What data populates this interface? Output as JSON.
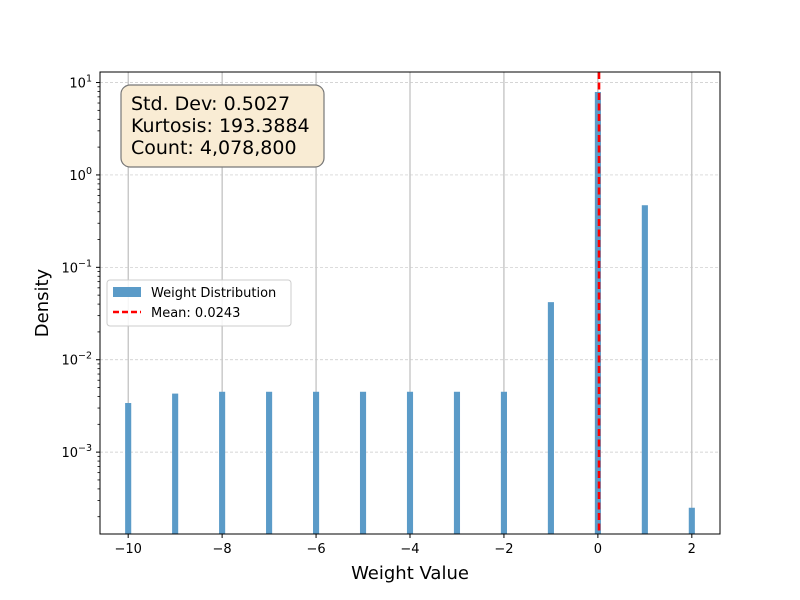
{
  "chart_data": {
    "type": "bar",
    "xlabel": "Weight Value",
    "ylabel": "Density",
    "xlim": [
      -10.6,
      2.6
    ],
    "ylim": [
      0.00013,
      13
    ],
    "yscale": "log",
    "grid": true,
    "x_ticks": [
      -10,
      -8,
      -6,
      -4,
      -2,
      0,
      2
    ],
    "x_tick_labels": [
      "−10",
      "−8",
      "−6",
      "−4",
      "−2",
      "0",
      "2"
    ],
    "y_ticks": [
      0.001,
      0.01,
      0.1,
      1,
      10
    ],
    "y_tick_labels": [
      {
        "base": "10",
        "exp": "−3"
      },
      {
        "base": "10",
        "exp": "−2"
      },
      {
        "base": "10",
        "exp": "−1"
      },
      {
        "base": "10",
        "exp": "0"
      },
      {
        "base": "10",
        "exp": "1"
      }
    ],
    "series": [
      {
        "name": "Weight Distribution",
        "type": "bar",
        "color": "#5b9bc8",
        "bin_width": 0.13,
        "x": [
          -10,
          -9,
          -8,
          -7,
          -6,
          -5,
          -4,
          -3,
          -2,
          -1,
          0,
          1,
          2
        ],
        "values": [
          0.0034,
          0.0043,
          0.0045,
          0.0045,
          0.0045,
          0.0045,
          0.0045,
          0.0045,
          0.0045,
          0.042,
          7.9,
          0.47,
          0.00025
        ]
      },
      {
        "name": "Mean: 0.0243",
        "type": "vline",
        "color": "#ff0000",
        "x": 0.0243
      }
    ],
    "legend": {
      "placement": "center-left",
      "entries": [
        "Weight Distribution",
        "Mean: 0.0243"
      ]
    },
    "annotation": {
      "lines": [
        "Std. Dev: 0.5027",
        "Kurtosis: 193.3884",
        "Count: 4,078,800"
      ],
      "placement": "top-left",
      "box_fill": "#f9ecd4",
      "box_stroke": "#777777"
    }
  }
}
